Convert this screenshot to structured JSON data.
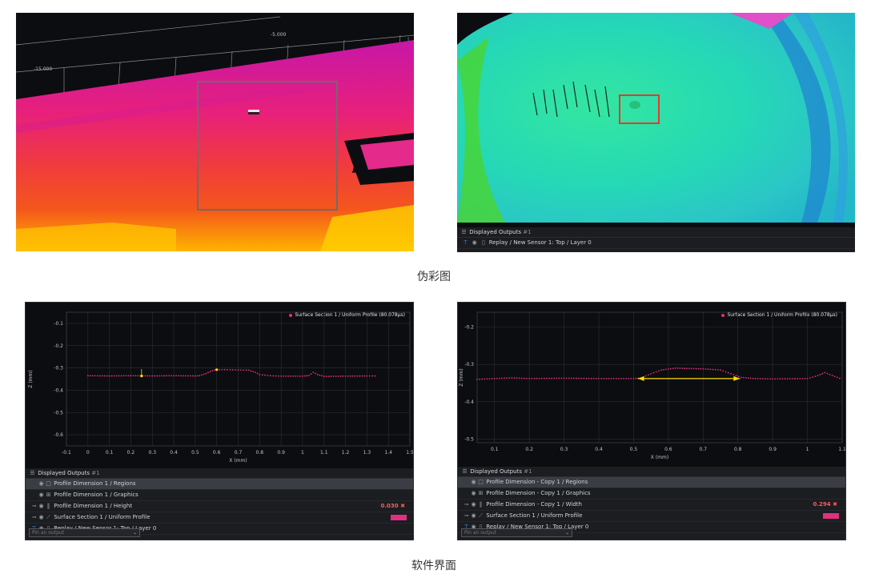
{
  "captions": {
    "top": "伪彩图",
    "bottom": "软件界面"
  },
  "panel_3d": {
    "ticks": [
      "-5.000",
      "-15.000"
    ]
  },
  "panel_top_right": {
    "outputs_title": "Displayed Outputs",
    "outputs_count": "#1",
    "rows": [
      {
        "label": "Replay / New Sensor 1: Top / Layer 0"
      }
    ]
  },
  "panel_bottom_left": {
    "legend": "Surface Section 1 / Uniform Profile (80.078µs)",
    "ylabel": "Z (mm)",
    "xlabel": "X (mm)",
    "outputs_title": "Displayed Outputs",
    "outputs_count": "#1",
    "rows": [
      {
        "label": "Profile Dimension 1 / Regions"
      },
      {
        "label": "Profile Dimension 1 / Graphics"
      },
      {
        "label": "Profile Dimension 1 / Height",
        "value": "0.030"
      },
      {
        "label": "Surface Section 1 / Uniform Profile"
      },
      {
        "label": "Replay / New Sensor 1: Top / Layer 0"
      }
    ],
    "pin_placeholder": "Pin an output"
  },
  "panel_bottom_right": {
    "legend": "Surface Section 1 / Uniform Profile (80.078µs)",
    "ylabel": "Z (mm)",
    "xlabel": "X (mm)",
    "outputs_title": "Displayed Outputs",
    "outputs_count": "#1",
    "rows": [
      {
        "label": "Profile Dimension - Copy 1 / Regions"
      },
      {
        "label": "Profile Dimension - Copy 1 / Graphics"
      },
      {
        "label": "Profile Dimension - Copy 1 / Width",
        "value": "0.294"
      },
      {
        "label": "Surface Section 1 / Uniform Profile"
      },
      {
        "label": "Replay / New Sensor 1: Top / Layer 0"
      }
    ],
    "pin_placeholder": "Pin an output"
  },
  "chart_data": [
    {
      "type": "scatter",
      "title": "",
      "xlabel": "X (mm)",
      "ylabel": "Z (mm)",
      "xlim": [
        -0.1,
        1.5
      ],
      "ylim": [
        -0.65,
        -0.05
      ],
      "x_ticks": [
        "-0.1",
        "0",
        "0.1",
        "0.2",
        "0.3",
        "0.4",
        "0.5",
        "0.6",
        "0.7",
        "0.8",
        "0.9",
        "1",
        "1.1",
        "1.2",
        "1.3",
        "1.4",
        "1.5"
      ],
      "y_ticks": [
        "-0.1",
        "-0.2",
        "-0.3",
        "-0.4",
        "-0.5",
        "-0.6"
      ],
      "grid": true,
      "legend": "top-right",
      "series": [
        {
          "name": "Surface Section 1 / Uniform Profile (80.078µs)",
          "x": [
            0.0,
            0.1,
            0.2,
            0.3,
            0.4,
            0.5,
            0.52,
            0.55,
            0.58,
            0.6,
            0.65,
            0.7,
            0.75,
            0.78,
            0.8,
            0.85,
            0.9,
            1.0,
            1.03,
            1.05,
            1.07,
            1.1,
            1.2,
            1.3,
            1.35
          ],
          "y": [
            -0.335,
            -0.336,
            -0.335,
            -0.336,
            -0.335,
            -0.336,
            -0.335,
            -0.325,
            -0.312,
            -0.308,
            -0.308,
            -0.309,
            -0.31,
            -0.32,
            -0.33,
            -0.335,
            -0.337,
            -0.337,
            -0.334,
            -0.32,
            -0.33,
            -0.338,
            -0.337,
            -0.336,
            -0.336
          ]
        }
      ]
    },
    {
      "type": "scatter",
      "title": "",
      "xlabel": "X (mm)",
      "ylabel": "Z (mm)",
      "xlim": [
        0.05,
        1.1
      ],
      "ylim": [
        -0.51,
        -0.16
      ],
      "x_ticks": [
        "0.1",
        "0.2",
        "0.3",
        "0.4",
        "0.5",
        "0.6",
        "0.7",
        "0.8",
        "0.9",
        "1",
        "1.1"
      ],
      "y_ticks": [
        "-0.2",
        "-0.3",
        "-0.4",
        "-0.5"
      ],
      "grid": true,
      "legend": "top-right",
      "series": [
        {
          "name": "Surface Section 1 / Uniform Profile (80.078µs)",
          "x": [
            0.05,
            0.1,
            0.15,
            0.2,
            0.3,
            0.4,
            0.5,
            0.52,
            0.55,
            0.58,
            0.62,
            0.7,
            0.75,
            0.78,
            0.81,
            0.85,
            0.9,
            1.0,
            1.03,
            1.05,
            1.1
          ],
          "y": [
            -0.34,
            -0.338,
            -0.336,
            -0.338,
            -0.337,
            -0.338,
            -0.338,
            -0.337,
            -0.325,
            -0.315,
            -0.31,
            -0.312,
            -0.315,
            -0.325,
            -0.335,
            -0.338,
            -0.339,
            -0.338,
            -0.33,
            -0.322,
            -0.34
          ]
        }
      ]
    }
  ]
}
